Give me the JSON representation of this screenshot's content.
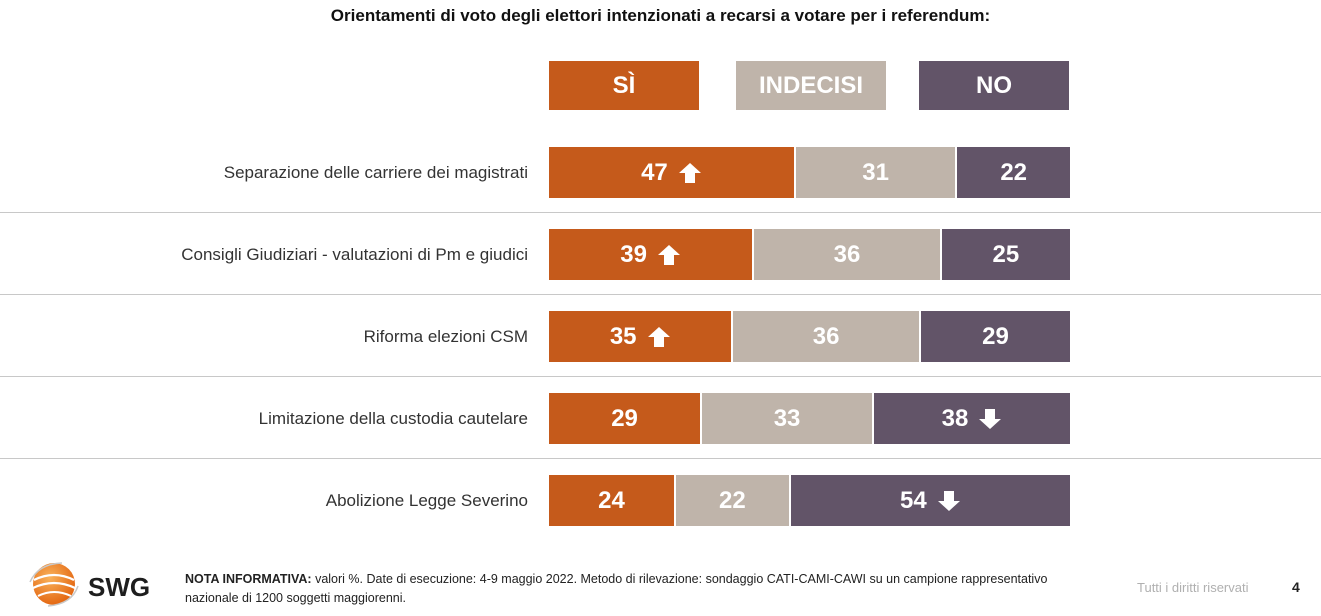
{
  "title": "Orientamenti di voto degli elettori intenzionati a recarsi a votare per i referendum:",
  "legend": [
    {
      "label": "SÌ",
      "color": "#c55a1b"
    },
    {
      "label": "INDECISI",
      "color": "#bfb4aa"
    },
    {
      "label": "NO",
      "color": "#625468"
    }
  ],
  "chart_data": {
    "type": "bar",
    "orientation": "horizontal",
    "stacked": true,
    "percent_stacked": true,
    "title": "Orientamenti di voto degli elettori intenzionati a recarsi a votare per i referendum:",
    "categories": [
      "Separazione delle carriere dei magistrati",
      "Consigli Giudiziari - valutazioni di Pm e giudici",
      "Riforma elezioni CSM",
      "Limitazione della custodia cautelare",
      "Abolizione Legge Severino"
    ],
    "series": [
      {
        "name": "SÌ",
        "color": "#c55a1b",
        "values": [
          47,
          39,
          35,
          29,
          24
        ]
      },
      {
        "name": "INDECISI",
        "color": "#bfb4aa",
        "values": [
          31,
          36,
          36,
          33,
          22
        ]
      },
      {
        "name": "NO",
        "color": "#625468",
        "values": [
          22,
          25,
          29,
          38,
          54
        ]
      }
    ],
    "markers": [
      {
        "category": "Separazione delle carriere dei magistrati",
        "series": "SÌ",
        "icon": "arrow-up-icon"
      },
      {
        "category": "Consigli Giudiziari - valutazioni di Pm e giudici",
        "series": "SÌ",
        "icon": "arrow-up-icon"
      },
      {
        "category": "Riforma elezioni CSM",
        "series": "SÌ",
        "icon": "arrow-up-icon"
      },
      {
        "category": "Limitazione della custodia cautelare",
        "series": "NO",
        "icon": "arrow-down-icon"
      },
      {
        "category": "Abolizione Legge Severino",
        "series": "NO",
        "icon": "arrow-down-icon"
      }
    ],
    "legend_position": "top",
    "grid": false
  },
  "logo": {
    "text": "SWG"
  },
  "note": {
    "label": "NOTA INFORMATIVA:",
    "text": " valori %. Date di esecuzione: 4-9 maggio 2022. Metodo di rilevazione: sondaggio CATI-CAMI-CAWI su un campione rappresentativo nazionale di 1200 soggetti maggiorenni."
  },
  "footer": {
    "rights": "Tutti i diritti riservati",
    "page": "4"
  }
}
